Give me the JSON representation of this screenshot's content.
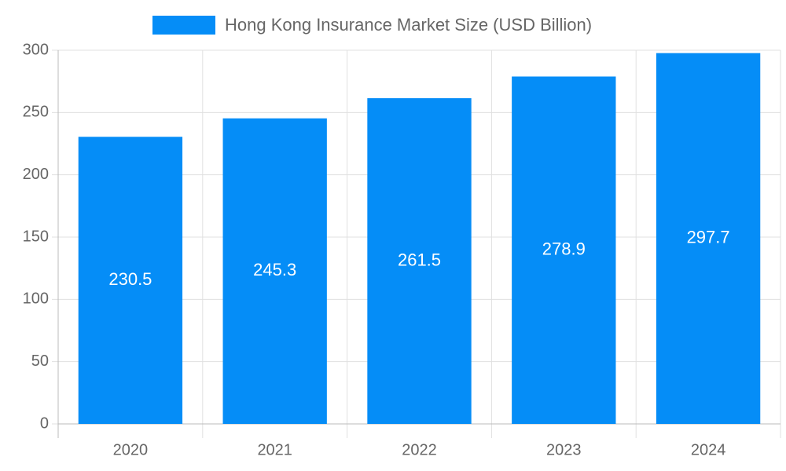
{
  "chart_data": {
    "type": "bar",
    "categories": [
      "2020",
      "2021",
      "2022",
      "2023",
      "2024"
    ],
    "series": [
      {
        "name": "Hong Kong Insurance Market Size (USD Billion)",
        "color": "#058df7",
        "values": [
          230.5,
          245.3,
          261.5,
          278.9,
          297.7
        ]
      }
    ],
    "ylim": [
      0,
      300
    ],
    "yticks": [
      0,
      50,
      100,
      150,
      200,
      250,
      300
    ],
    "grid": true
  }
}
